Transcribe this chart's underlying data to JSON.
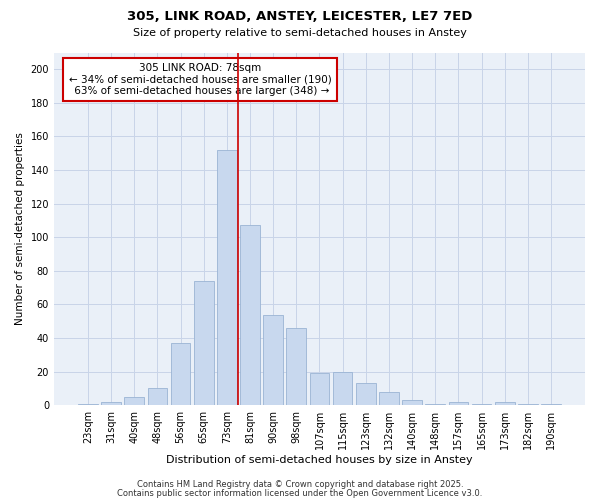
{
  "title1": "305, LINK ROAD, ANSTEY, LEICESTER, LE7 7ED",
  "title2": "Size of property relative to semi-detached houses in Anstey",
  "xlabel": "Distribution of semi-detached houses by size in Anstey",
  "ylabel": "Number of semi-detached properties",
  "categories": [
    "23sqm",
    "31sqm",
    "40sqm",
    "48sqm",
    "56sqm",
    "65sqm",
    "73sqm",
    "81sqm",
    "90sqm",
    "98sqm",
    "107sqm",
    "115sqm",
    "123sqm",
    "132sqm",
    "140sqm",
    "148sqm",
    "157sqm",
    "165sqm",
    "173sqm",
    "182sqm",
    "190sqm"
  ],
  "values": [
    1,
    2,
    5,
    10,
    37,
    74,
    152,
    107,
    54,
    46,
    19,
    20,
    13,
    8,
    3,
    1,
    2,
    1,
    2,
    1,
    1
  ],
  "bar_color": "#c8d8ee",
  "bar_edge_color": "#9ab4d4",
  "grid_color": "#c8d4e8",
  "background_color": "#eaf0f8",
  "plot_bg_color": "#eaf0f8",
  "fig_bg_color": "#ffffff",
  "vline_x": 6.5,
  "vline_color": "#cc0000",
  "property_label": "305 LINK ROAD: 78sqm",
  "pct_smaller": 34,
  "count_smaller": 190,
  "pct_larger": 63,
  "count_larger": 348,
  "box_color": "#ffffff",
  "box_edge_color": "#cc0000",
  "footnote1": "Contains HM Land Registry data © Crown copyright and database right 2025.",
  "footnote2": "Contains public sector information licensed under the Open Government Licence v3.0.",
  "ylim": [
    0,
    210
  ],
  "yticks": [
    0,
    20,
    40,
    60,
    80,
    100,
    120,
    140,
    160,
    180,
    200
  ]
}
